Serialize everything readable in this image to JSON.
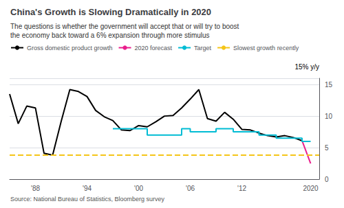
{
  "chart_data": {
    "type": "line",
    "title": "China's Growth is Slowing Dramatically in 2020",
    "subtitle": "The questions is whether the government will accept that or will try to boost\nthe economy back toward a 6% expansion through more stimulus",
    "ylabel": "15% y/y",
    "source": "Source: National Bureau of Statistics, Bloomberg survey",
    "xlim": [
      1985,
      2021
    ],
    "xticks": [
      {
        "value": 1988,
        "label": "'88"
      },
      {
        "value": 1994,
        "label": "'94"
      },
      {
        "value": 2000,
        "label": "'00"
      },
      {
        "value": 2006,
        "label": "'06"
      },
      {
        "value": 2012,
        "label": "'12"
      },
      2020
    ],
    "ylim": [
      0,
      16
    ],
    "yticks": [
      0,
      5,
      10,
      15
    ],
    "grid": true,
    "legend": "upper left",
    "series": [
      {
        "name": "Gross domestic product growth",
        "color": "#000000",
        "line_style": "solid",
        "x": [
          1985,
          1986,
          1987,
          1988,
          1989,
          1990,
          1991,
          1992,
          1993,
          1994,
          1995,
          1996,
          1997,
          1998,
          1999,
          2000,
          2001,
          2002,
          2003,
          2004,
          2005,
          2006,
          2007,
          2008,
          2009,
          2010,
          2011,
          2012,
          2013,
          2014,
          2015,
          2016,
          2017,
          2018,
          2019
        ],
        "values": [
          13.5,
          8.8,
          11.6,
          11.3,
          4.1,
          3.8,
          9.2,
          14.2,
          13.9,
          13.1,
          10.9,
          9.9,
          9.3,
          7.8,
          7.7,
          8.5,
          8.3,
          9.1,
          10.0,
          10.1,
          11.3,
          12.7,
          14.2,
          9.6,
          9.2,
          10.6,
          9.5,
          7.9,
          7.8,
          7.3,
          6.9,
          6.7,
          6.9,
          6.6,
          6.1
        ]
      },
      {
        "name": "2020 forecast",
        "color": "#e91e8c",
        "line_style": "solid",
        "x": [
          2019,
          2020
        ],
        "values": [
          6.1,
          2.5
        ]
      },
      {
        "name": "Target",
        "type": "step",
        "color": "#00bcd4",
        "line_style": "solid",
        "x": [
          1997,
          1998,
          1999,
          2000,
          2001,
          2002,
          2003,
          2004,
          2005,
          2006,
          2007,
          2008,
          2009,
          2010,
          2011,
          2012,
          2013,
          2014,
          2015,
          2016,
          2017,
          2018,
          2019,
          2020
        ],
        "values": [
          8.0,
          8.0,
          8.0,
          8.0,
          7.0,
          7.0,
          7.0,
          7.0,
          8.0,
          7.5,
          7.5,
          7.5,
          8.0,
          8.0,
          7.5,
          7.5,
          7.5,
          7.0,
          7.0,
          6.5,
          6.5,
          6.5,
          6.0,
          6.0
        ]
      },
      {
        "name": "Slowest growth recently",
        "type": "hline",
        "color": "#f5c518",
        "line_style": "dashed",
        "values": [
          3.8
        ]
      }
    ]
  }
}
